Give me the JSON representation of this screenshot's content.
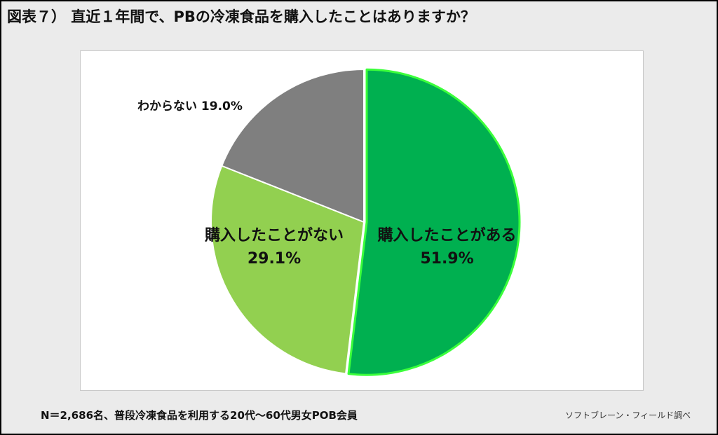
{
  "title": "図表７） 直近１年間で、PBの冷凍食品を購入したことはありますか？",
  "footnote": "N＝2,686名、普段冷凍食品を利用する20代〜60代男女POB会員",
  "source": "ソフトブレーン・フィールド調べ",
  "chart_data": {
    "type": "pie",
    "start": "12 o'clock",
    "direction": "clockwise",
    "slices": [
      {
        "label": "購入したことがある",
        "value": 51.9,
        "value_label": "51.9%",
        "color": "#00b050",
        "edge_color": "#3bff3b"
      },
      {
        "label": "購入したことがない",
        "value": 29.1,
        "value_label": "29.1%",
        "color": "#92d050",
        "edge_color": "#ffffff"
      },
      {
        "label": "わからない",
        "value": 19.0,
        "value_label": "19.0%",
        "color": "#7f7f7f",
        "edge_color": "#ffffff"
      }
    ]
  }
}
